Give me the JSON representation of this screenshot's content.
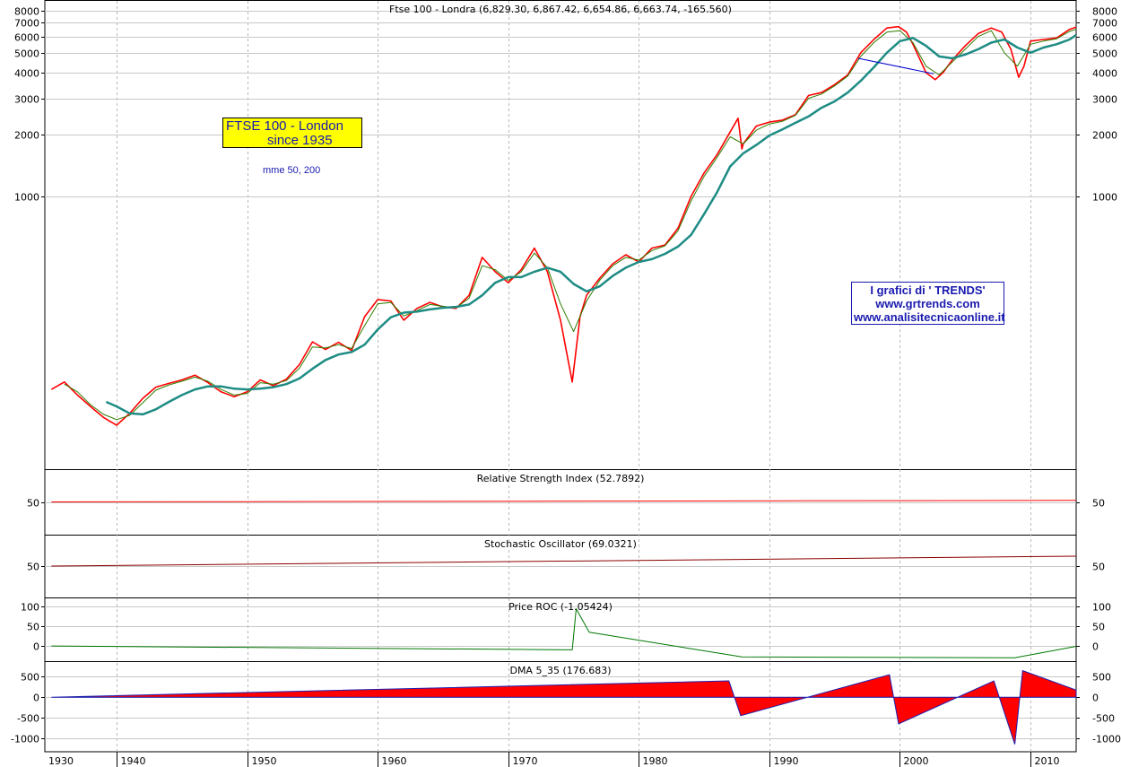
{
  "chart_data": [
    {
      "type": "line",
      "title": "Ftse 100 - Londra (6,829.30, 6,867.42, 6,654.86, 6,663.74, -165.560)",
      "scale": "log",
      "ylim": [
        50,
        8500
      ],
      "y_ticks": [
        "1000",
        "2000",
        "3000",
        "4000",
        "5000",
        "6000",
        "7000",
        "8000"
      ],
      "x_ticks": [
        "1930",
        "1940",
        "1950",
        "1960",
        "1970",
        "1980",
        "1990",
        "2000",
        "2010"
      ],
      "xlim": [
        1934.5,
        2013.5
      ],
      "grid": true,
      "series": [
        {
          "color": "#ff0000",
          "x": [
            1935,
            1936,
            1937,
            1938,
            1939,
            1940,
            1941,
            1942,
            1943,
            1944,
            1945,
            1946,
            1947,
            1948,
            1949,
            1950,
            1951,
            1952,
            1953,
            1954,
            1955,
            1956,
            1957,
            1958,
            1959,
            1960,
            1961,
            1962,
            1963,
            1964,
            1965,
            1966,
            1967,
            1968,
            1969,
            1970,
            1971,
            1972,
            1973,
            1974,
            1974.9,
            1975.5,
            1976,
            1977,
            1978,
            1979,
            1980,
            1981,
            1982,
            1983,
            1984,
            1985,
            1986,
            1987.6,
            1987.9,
            1988,
            1989,
            1990,
            1991,
            1992,
            1993,
            1994,
            1995,
            1996,
            1997,
            1998,
            1999,
            1999.9,
            2000.5,
            2001,
            2002,
            2002.7,
            2003.3,
            2004,
            2005,
            2006,
            2007,
            2007.8,
            2008.5,
            2009.1,
            2009.5,
            2010,
            2011,
            2012,
            2013,
            2013.5
          ],
          "y": [
            115,
            125,
            108,
            95,
            84,
            77,
            88,
            104,
            118,
            123,
            128,
            135,
            124,
            112,
            106,
            112,
            128,
            120,
            129,
            152,
            196,
            180,
            195,
            178,
            260,
            315,
            310,
            250,
            285,
            305,
            290,
            285,
            330,
            505,
            430,
            380,
            440,
            560,
            430,
            250,
            125,
            260,
            330,
            400,
            470,
            520,
            480,
            560,
            580,
            700,
            1000,
            1300,
            1600,
            2400,
            1700,
            1800,
            2200,
            2300,
            2350,
            2500,
            3100,
            3200,
            3500,
            3900,
            5000,
            5800,
            6600,
            6700,
            6300,
            5500,
            4000,
            3700,
            4000,
            4600,
            5400,
            6200,
            6600,
            6300,
            5200,
            3800,
            4300,
            5700,
            5800,
            5900,
            6500,
            6664
          ]
        },
        {
          "color": "#2f7d00",
          "x": [
            1936,
            1937,
            1938,
            1939,
            1940,
            1941,
            1942,
            1943,
            1944,
            1945,
            1946,
            1947,
            1948,
            1949,
            1950,
            1951,
            1952,
            1953,
            1954,
            1955,
            1956,
            1957,
            1958,
            1959,
            1960,
            1961,
            1962,
            1963,
            1964,
            1965,
            1966,
            1967,
            1968,
            1969,
            1970,
            1971,
            1972,
            1973,
            1974,
            1975,
            1976,
            1977,
            1978,
            1979,
            1980,
            1981,
            1982,
            1983,
            1984,
            1985,
            1986,
            1987,
            1988,
            1989,
            1990,
            1991,
            1992,
            1993,
            1994,
            1995,
            1996,
            1997,
            1998,
            1999,
            2000,
            2001,
            2002,
            2003,
            2004,
            2005,
            2006,
            2007,
            2008,
            2009,
            2010,
            2011,
            2012,
            2013,
            2013.5
          ],
          "y": [
            122,
            112,
            97,
            87,
            82,
            86,
            99,
            114,
            121,
            126,
            132,
            126,
            115,
            108,
            110,
            124,
            122,
            127,
            146,
            185,
            183,
            190,
            182,
            235,
            300,
            305,
            262,
            278,
            298,
            292,
            287,
            320,
            460,
            440,
            390,
            430,
            530,
            450,
            300,
            220,
            310,
            390,
            460,
            505,
            490,
            545,
            575,
            680,
            950,
            1250,
            1550,
            1950,
            1800,
            2100,
            2250,
            2320,
            2480,
            3000,
            3150,
            3450,
            3850,
            4800,
            5600,
            6300,
            6400,
            5600,
            4300,
            3900,
            4500,
            5200,
            6000,
            6400,
            5000,
            4300,
            5500,
            5700,
            5850,
            6350,
            6500
          ]
        },
        {
          "color": "#1e8c84",
          "x": [
            1939.2,
            1940,
            1941,
            1942,
            1943,
            1944,
            1945,
            1946,
            1947,
            1948,
            1949,
            1950,
            1951,
            1952,
            1953,
            1954,
            1955,
            1956,
            1957,
            1958,
            1959,
            1960,
            1961,
            1962,
            1963,
            1964,
            1965,
            1966,
            1967,
            1968,
            1969,
            1970,
            1971,
            1972,
            1973,
            1974,
            1975,
            1976,
            1977,
            1978,
            1979,
            1980,
            1981,
            1982,
            1983,
            1984,
            1985,
            1986,
            1987,
            1988,
            1989,
            1990,
            1991,
            1992,
            1993,
            1994,
            1995,
            1996,
            1997,
            1998,
            1999,
            2000,
            2001,
            2002,
            2003,
            2004,
            2005,
            2006,
            2007,
            2008,
            2009,
            2010,
            2011,
            2012,
            2013,
            2013.5
          ],
          "y": [
            100,
            95,
            88,
            87,
            92,
            100,
            108,
            115,
            119,
            119,
            116,
            115,
            116,
            118,
            122,
            130,
            145,
            160,
            170,
            175,
            190,
            225,
            258,
            272,
            275,
            282,
            287,
            290,
            298,
            330,
            380,
            405,
            405,
            430,
            450,
            430,
            375,
            345,
            365,
            410,
            450,
            480,
            495,
            525,
            570,
            650,
            820,
            1050,
            1400,
            1620,
            1780,
            1980,
            2120,
            2280,
            2450,
            2700,
            2900,
            3200,
            3650,
            4250,
            5000,
            5700,
            5900,
            5400,
            4800,
            4700,
            4900,
            5200,
            5600,
            5800,
            5300,
            5000,
            5300,
            5500,
            5800,
            6100
          ]
        },
        {
          "color": "#0000cc",
          "x": [
            1996.8,
            2002.6
          ],
          "y": [
            4700,
            3950
          ]
        }
      ]
    },
    {
      "type": "line",
      "title": "Relative Strength Index (52.7892)",
      "ylim": [
        0,
        100
      ],
      "y_ticks": [
        "50"
      ],
      "series": [
        {
          "color": "#ff0000",
          "x": [
            1935,
            2013.5
          ],
          "y": [
            50,
            52.79
          ]
        }
      ]
    },
    {
      "type": "line",
      "title": "Stochastic Oscillator (69.0321)",
      "ylim": [
        0,
        100
      ],
      "y_ticks": [
        "50"
      ],
      "series": [
        {
          "color": "#8b0000",
          "x": [
            1935,
            2013.5
          ],
          "y": [
            50,
            69.03
          ]
        }
      ]
    },
    {
      "type": "line",
      "title": "Price ROC (-1.05424)",
      "ylim": [
        -25,
        110
      ],
      "y_ticks": [
        "100",
        "50",
        "0"
      ],
      "series": [
        {
          "color": "#007700",
          "x": [
            1935,
            1974.9,
            1975.2,
            1976.2,
            1987.9,
            2008.8,
            2013.5
          ],
          "y": [
            0,
            -10,
            95,
            35,
            -28,
            -30,
            -1.05
          ]
        }
      ]
    },
    {
      "type": "area",
      "title": "DMA 5_35 (176.683)",
      "ylim": [
        -1200,
        750
      ],
      "y_ticks": [
        "500",
        "0",
        "-500",
        "-1000"
      ],
      "series": [
        {
          "color": "#ff0000",
          "x": [
            1935,
            1986.9,
            1987.8,
            1999.2,
            1999.9,
            2007.2,
            2008.8,
            2009.4,
            2013.5
          ],
          "y": [
            0,
            400,
            -450,
            550,
            -650,
            400,
            -1150,
            650,
            176.68
          ]
        }
      ]
    }
  ],
  "annotations": {
    "ftse_line1": "FTSE 100 - London",
    "ftse_line2": "since 1935",
    "mme": "mme 50, 200",
    "trends_line1": "I grafici di ' TRENDS'",
    "trends_line2": "www.grtrends.com",
    "trends_line3": "www.analisitecnicaonline.it"
  }
}
